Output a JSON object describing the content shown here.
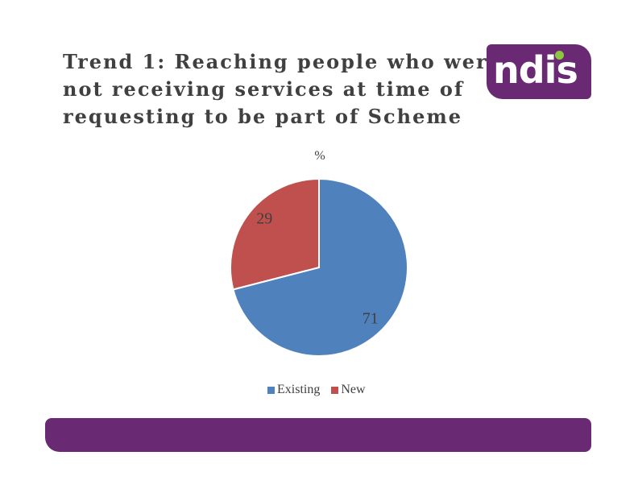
{
  "slide": {
    "title_lines": [
      "Trend 1: Reaching people who were",
      "not receiving services at time of",
      "requesting to be part of Scheme"
    ]
  },
  "logo": {
    "text": "ndis",
    "background_color": "#6a2a73",
    "dot_color": "#8dc63f"
  },
  "footer": {
    "color": "#6a2a73"
  },
  "chart_data": {
    "type": "pie",
    "title": "%",
    "categories": [
      "Existing",
      "New"
    ],
    "values": [
      71,
      29
    ],
    "colors": [
      "#4f81bd",
      "#c0504d"
    ],
    "legend_position": "bottom",
    "labels": [
      "71",
      "29"
    ]
  }
}
